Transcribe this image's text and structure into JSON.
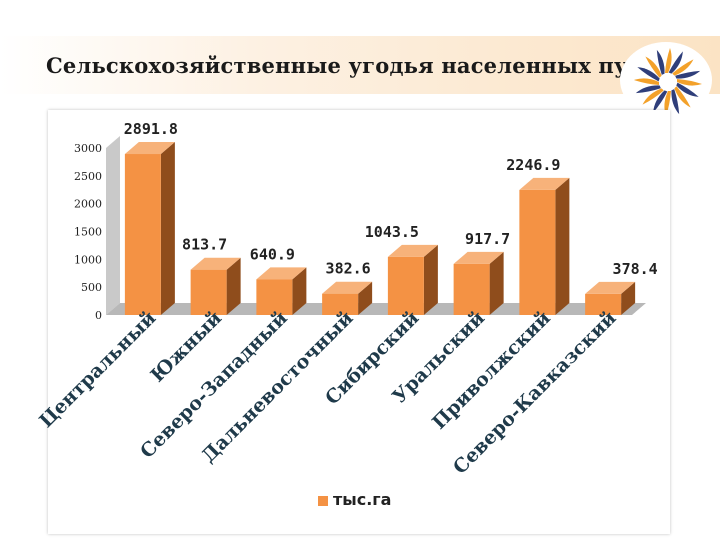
{
  "slide": {
    "title": "Сельскохозяйственные угодья населенных пунктов"
  },
  "colors": {
    "bar_front": "#f49244",
    "bar_side": "#8f4d1c",
    "bar_top": "#f7b27a",
    "wall": "#c9c9c9",
    "floor": "#b8b8b8"
  },
  "chart_data": {
    "type": "bar",
    "categories": [
      "Центральный",
      "Южный",
      "Северо-Западный",
      "Дальневосточный",
      "Сибирский",
      "Уральский",
      "Приволжский",
      "Северо-Кавказский"
    ],
    "series": [
      {
        "name": "тыс.га",
        "values": [
          2891.8,
          813.7,
          640.9,
          382.6,
          1043.5,
          917.7,
          2246.9,
          378.4
        ]
      }
    ],
    "data_labels": [
      "2891.8",
      "813.7",
      "640.9",
      "382.6",
      "1043.5",
      "917.7",
      "2246.9",
      "378.4"
    ],
    "y_ticks": [
      "0",
      "500",
      "1000",
      "1500",
      "2000",
      "2500",
      "3000"
    ],
    "ylim": [
      0,
      3000
    ],
    "legend": "bottom",
    "grid": false
  }
}
